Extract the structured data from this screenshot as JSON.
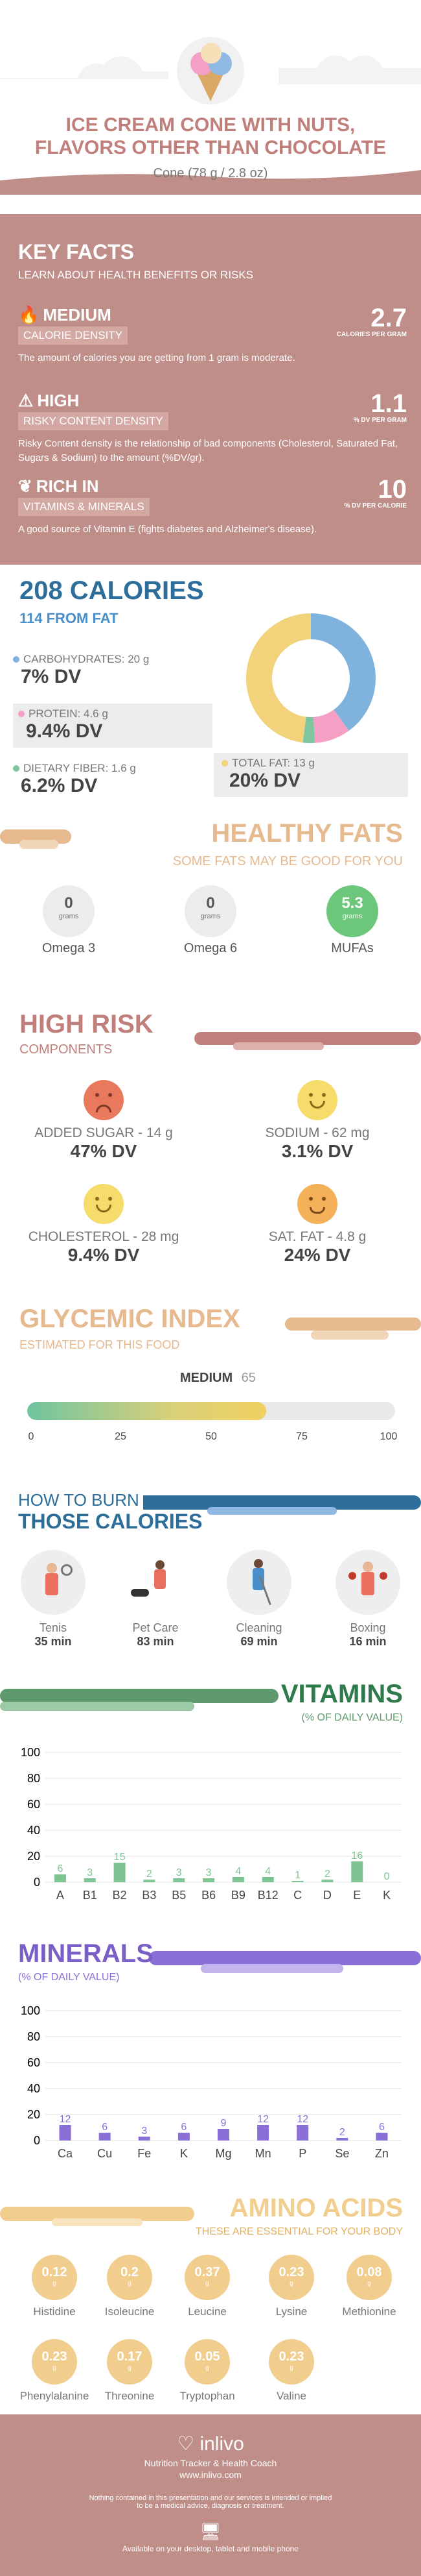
{
  "header": {
    "title_line1": "ICE CREAM CONE WITH NUTS,",
    "title_line2": "FLAVORS OTHER THAN CHOCOLATE",
    "subtitle": "Cone (78 g / 2.8 oz)"
  },
  "key_facts": {
    "title": "KEY FACTS",
    "subtitle": "LEARN ABOUT HEALTH BENEFITS OR RISKS",
    "items": [
      {
        "level": "MEDIUM",
        "label": "CALORIE DENSITY",
        "value": "2.7",
        "unit": "CALORIES PER GRAM",
        "desc": "The amount of calories you are getting from 1 gram is moderate."
      },
      {
        "level": "HIGH",
        "label": "RISKY CONTENT DENSITY",
        "value": "1.1",
        "unit": "% DV PER GRAM",
        "desc": "Risky Content density is the relationship of bad components (Cholesterol, Saturated Fat, Sugars & Sodium) to the amount (%DV/gr)."
      },
      {
        "level": "RICH  IN",
        "label": "VITAMINS & MINERALS",
        "value": "10",
        "unit": "% DV PER CALORIE",
        "desc": "A good source of Vitamin E (fights diabetes and Alzheimer's disease)."
      }
    ]
  },
  "calories": {
    "title": "208 CALORIES",
    "from_fat": "114 FROM FAT",
    "carbs": {
      "label": "CARBOHYDRATES: 20 g",
      "dv": "7% DV"
    },
    "protein": {
      "label": "PROTEIN: 4.6 g",
      "dv": "9.4% DV"
    },
    "fiber": {
      "label": "DIETARY FIBER: 1.6 g",
      "dv": "6.2% DV"
    },
    "fat": {
      "label": "TOTAL FAT: 13 g",
      "dv": "20% DV"
    },
    "colors": {
      "carbs": "#7fb3dd",
      "protein": "#f3a0c4",
      "fiber": "#7dc6a0",
      "fat": "#f2d27a"
    },
    "donut_fractions": {
      "carbs": 0.4,
      "protein": 0.09,
      "fiber": 0.03,
      "fat": 0.48
    }
  },
  "healthy_fats": {
    "title": "HEALTHY FATS",
    "subtitle": "SOME FATS MAY BE GOOD FOR YOU",
    "items": [
      {
        "value": "0",
        "unit": "grams",
        "name": "Omega 3"
      },
      {
        "value": "0",
        "unit": "grams",
        "name": "Omega 6"
      },
      {
        "value": "5.3",
        "unit": "grams",
        "name": "MUFAs"
      }
    ]
  },
  "high_risk": {
    "title": "HIGH RISK",
    "subtitle": "COMPONENTS",
    "items": [
      {
        "label": "ADDED SUGAR - 14 g",
        "dv": "47% DV",
        "mood": "sad"
      },
      {
        "label": "SODIUM - 62 mg",
        "dv": "3.1% DV",
        "mood": "happy"
      },
      {
        "label": "CHOLESTEROL - 28 mg",
        "dv": "9.4% DV",
        "mood": "happy"
      },
      {
        "label": "SAT. FAT - 4.8 g",
        "dv": "24% DV",
        "mood": "neutral"
      }
    ]
  },
  "glycemic": {
    "title": "GLYCEMIC INDEX",
    "subtitle": "ESTIMATED FOR THIS FOOD",
    "level": "MEDIUM",
    "value": "65",
    "ticks": [
      "0",
      "25",
      "50",
      "75",
      "100"
    ],
    "fill_fraction": 0.65
  },
  "burn": {
    "title1": "HOW TO BURN",
    "title2": "THOSE CALORIES",
    "activities": [
      {
        "name": "Tenis",
        "time": "35 min"
      },
      {
        "name": "Pet Care",
        "time": "83 min"
      },
      {
        "name": "Cleaning",
        "time": "69 min"
      },
      {
        "name": "Boxing",
        "time": "16 min"
      }
    ]
  },
  "vitamins": {
    "title": "VITAMINS",
    "subtitle": "(% OF DAILY VALUE)"
  },
  "minerals": {
    "title": "MINERALS",
    "subtitle": "(% OF DAILY VALUE)"
  },
  "chart_data": [
    {
      "type": "bar",
      "categories": [
        "A",
        "B1",
        "B2",
        "B3",
        "B5",
        "B6",
        "B9",
        "B12",
        "C",
        "D",
        "E",
        "K"
      ],
      "values": [
        6,
        3,
        15,
        2,
        3,
        3,
        4,
        4,
        1,
        2,
        16,
        0
      ],
      "ylim": [
        0,
        100
      ],
      "yticks": [
        0,
        20,
        40,
        60,
        80,
        100
      ],
      "color": "#7ec493"
    },
    {
      "type": "bar",
      "categories": [
        "Ca",
        "Cu",
        "Fe",
        "K",
        "Mg",
        "Mn",
        "P",
        "Se",
        "Zn"
      ],
      "values": [
        12,
        6,
        3,
        6,
        9,
        12,
        12,
        2,
        6
      ],
      "ylim": [
        0,
        100
      ],
      "yticks": [
        0,
        20,
        40,
        60,
        80,
        100
      ],
      "color": "#8a6fd6"
    }
  ],
  "amino": {
    "title": "AMINO ACIDS",
    "subtitle": "THESE ARE ESSENTIAL FOR YOUR BODY",
    "unit": "g",
    "items": [
      {
        "value": "0.12",
        "name": "Histidine"
      },
      {
        "value": "0.2",
        "name": "Isoleucine"
      },
      {
        "value": "0.37",
        "name": "Leucine"
      },
      {
        "value": "0.23",
        "name": "Lysine"
      },
      {
        "value": "0.08",
        "name": "Methionine"
      },
      {
        "value": "0.23",
        "name": "Phenylalanine"
      },
      {
        "value": "0.17",
        "name": "Threonine"
      },
      {
        "value": "0.05",
        "name": "Tryptophan"
      },
      {
        "value": "0.23",
        "name": "Valine"
      }
    ]
  },
  "footer": {
    "brand": "inlivo",
    "tagline": "Nutrition Tracker & Health Coach",
    "url": "www.inlivo.com",
    "disclaimer1": "Nothing contained in this presentation and our services is intended or implied",
    "disclaimer2": "to be a medical advice, diagnosis or treatment.",
    "available": "Available on your desktop, tablet and mobile phone"
  }
}
